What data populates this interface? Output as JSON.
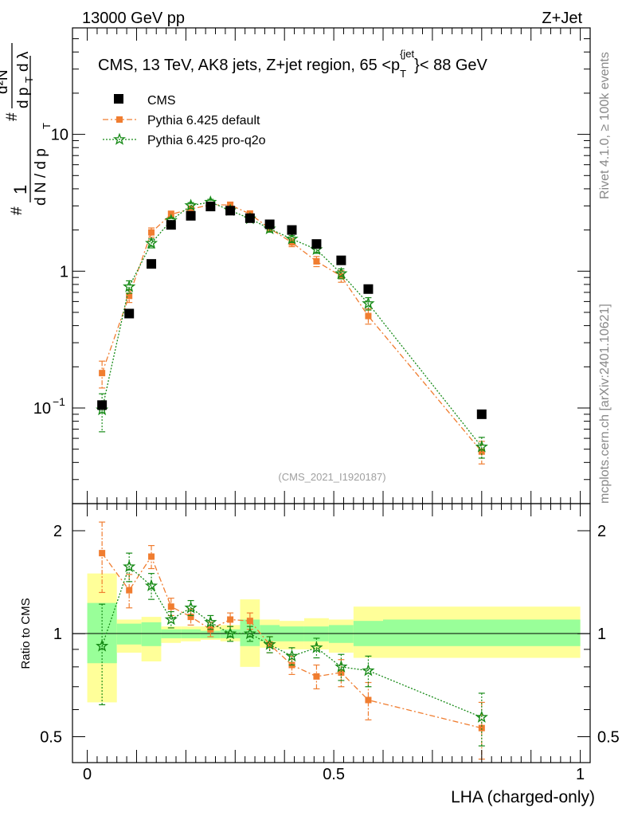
{
  "header": {
    "left": "13000 GeV pp",
    "right": "Z+Jet"
  },
  "side_labels": {
    "rivet": "Rivet 4.1.0, ≥ 100k events",
    "mcplots": "mcplots.cern.ch [arXiv:2401.10621]"
  },
  "watermark": "(CMS_2021_I1920187)",
  "colors": {
    "cms": "#000000",
    "default": "#f07d30",
    "proq2o": "#168a16",
    "band_outer": "#ffff99",
    "band_inner": "#99ff99"
  },
  "chart_data": [
    {
      "type": "scatter",
      "title": "CMS, 13 TeV, AK8 jets, Z+jet region, 65 <p_T^{jet}< 88 GeV",
      "title_parts": {
        "main": "CMS, 13 TeV, AK8 jets, Z+jet region, 65 <p",
        "sub": "T",
        "sup": "{jet",
        "tail": "}< 88 GeV"
      },
      "ylabel": "1/(dN/dp_T) d²N/(dp_T dλ)",
      "ylabel_parts": {
        "hash": "#",
        "one": "1",
        "dn": "d N / d p",
        "tsub": "T",
        "d2n": "d²N",
        "dpt": "d p",
        "dl": "d λ"
      },
      "yscale": "log",
      "ylim": [
        0.02,
        60
      ],
      "xlim": [
        -0.03,
        1.02
      ],
      "yticks": [
        {
          "value": 0.1,
          "label": "10",
          "exp": "−1"
        },
        {
          "value": 1,
          "label": "1",
          "exp": ""
        },
        {
          "value": 10,
          "label": "10",
          "exp": ""
        }
      ],
      "legend": {
        "position": "top-left",
        "entries": [
          "CMS",
          "Pythia 6.425 default",
          "Pythia 6.425 pro-q2o"
        ]
      },
      "x": [
        0.03,
        0.085,
        0.13,
        0.17,
        0.21,
        0.25,
        0.29,
        0.33,
        0.37,
        0.415,
        0.465,
        0.515,
        0.57,
        0.8
      ],
      "series": [
        {
          "name": "CMS",
          "values": [
            0.105,
            0.49,
            1.13,
            2.18,
            2.54,
            2.97,
            2.77,
            2.44,
            2.2,
            2.0,
            1.58,
            1.2,
            0.74,
            0.09
          ],
          "errors": [
            0.004,
            0.01,
            0.02,
            0.03,
            0.03,
            0.03,
            0.03,
            0.03,
            0.03,
            0.03,
            0.02,
            0.02,
            0.015,
            0.003
          ]
        },
        {
          "name": "Pythia 6.425 default",
          "values": [
            0.18,
            0.66,
            1.92,
            2.6,
            2.85,
            3.05,
            3.05,
            2.62,
            2.05,
            1.62,
            1.18,
            0.92,
            0.47,
            0.048
          ],
          "errors": [
            0.04,
            0.07,
            0.15,
            0.15,
            0.15,
            0.15,
            0.15,
            0.14,
            0.12,
            0.11,
            0.1,
            0.09,
            0.06,
            0.009
          ]
        },
        {
          "name": "Pythia 6.425 pro-q2o",
          "values": [
            0.097,
            0.77,
            1.6,
            2.35,
            3.02,
            3.2,
            2.78,
            2.42,
            2.04,
            1.72,
            1.44,
            0.96,
            0.58,
            0.052
          ],
          "errors": [
            0.03,
            0.08,
            0.12,
            0.12,
            0.15,
            0.15,
            0.14,
            0.13,
            0.11,
            0.1,
            0.09,
            0.08,
            0.06,
            0.009
          ]
        }
      ]
    },
    {
      "type": "scatter",
      "title": "",
      "xlabel": "LHA (charged-only)",
      "ylabel": "Ratio to CMS",
      "yscale": "log",
      "ylim": [
        0.42,
        2.4
      ],
      "xlim": [
        -0.03,
        1.02
      ],
      "xticks": [
        {
          "value": 0,
          "label": "0"
        },
        {
          "value": 0.5,
          "label": "0.5"
        },
        {
          "value": 1,
          "label": "1"
        }
      ],
      "yticks": [
        {
          "value": 0.5,
          "label": "0.5"
        },
        {
          "value": 1,
          "label": "1"
        },
        {
          "value": 2,
          "label": "2"
        }
      ],
      "bin_edges": [
        0,
        0.06,
        0.11,
        0.15,
        0.19,
        0.23,
        0.27,
        0.31,
        0.35,
        0.39,
        0.44,
        0.49,
        0.54,
        0.6,
        1.0
      ],
      "band_outer": [
        [
          0.63,
          1.5
        ],
        [
          0.88,
          1.1
        ],
        [
          0.83,
          1.12
        ],
        [
          0.94,
          1.05
        ],
        [
          0.95,
          1.05
        ],
        [
          0.96,
          1.05
        ],
        [
          0.95,
          1.06
        ],
        [
          0.8,
          1.26
        ],
        [
          0.91,
          1.1
        ],
        [
          0.9,
          1.09
        ],
        [
          0.9,
          1.11
        ],
        [
          0.88,
          1.1
        ],
        [
          0.85,
          1.2
        ],
        [
          0.85,
          1.2
        ]
      ],
      "band_inner": [
        [
          0.82,
          1.23
        ],
        [
          0.93,
          1.07
        ],
        [
          0.92,
          1.08
        ],
        [
          0.97,
          1.03
        ],
        [
          0.97,
          1.03
        ],
        [
          0.97,
          1.02
        ],
        [
          0.97,
          1.03
        ],
        [
          0.92,
          1.1
        ],
        [
          0.95,
          1.06
        ],
        [
          0.95,
          1.05
        ],
        [
          0.95,
          1.05
        ],
        [
          0.94,
          1.06
        ],
        [
          0.92,
          1.09
        ],
        [
          0.92,
          1.1
        ]
      ],
      "x": [
        0.03,
        0.085,
        0.13,
        0.17,
        0.21,
        0.25,
        0.29,
        0.33,
        0.37,
        0.415,
        0.465,
        0.515,
        0.57,
        0.8
      ],
      "series": [
        {
          "name": "Pythia 6.425 default",
          "values": [
            1.72,
            1.34,
            1.68,
            1.2,
            1.12,
            1.03,
            1.1,
            1.09,
            0.93,
            0.81,
            0.75,
            0.77,
            0.64,
            0.53
          ],
          "errors": [
            0.4,
            0.15,
            0.13,
            0.07,
            0.06,
            0.05,
            0.05,
            0.06,
            0.05,
            0.05,
            0.06,
            0.07,
            0.08,
            0.1
          ]
        },
        {
          "name": "Pythia 6.425 pro-q2o",
          "values": [
            0.92,
            1.57,
            1.38,
            1.1,
            1.19,
            1.08,
            1.0,
            1.0,
            0.93,
            0.86,
            0.91,
            0.8,
            0.78,
            0.57
          ],
          "errors": [
            0.3,
            0.15,
            0.12,
            0.06,
            0.06,
            0.05,
            0.05,
            0.05,
            0.05,
            0.05,
            0.06,
            0.07,
            0.08,
            0.1
          ]
        }
      ]
    }
  ]
}
